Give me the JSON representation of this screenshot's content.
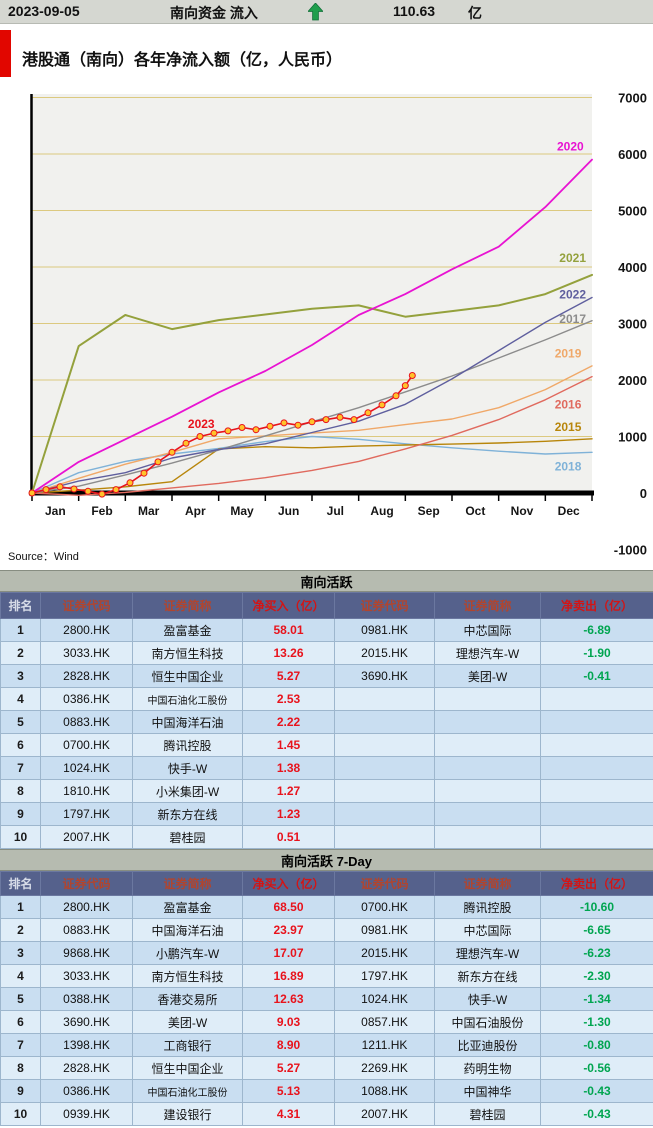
{
  "header": {
    "date": "2023-09-05",
    "label": "南向资金 流入",
    "value": "110.63",
    "unit": "亿",
    "arrow_icon": "up-arrow",
    "arrow_color": "#1f9e4c"
  },
  "chart": {
    "title": "港股通（南向）各年净流入额（亿，人民币）",
    "source": "Source：Wind",
    "accent_bar_color": "#e10600"
  },
  "chart_data": {
    "type": "line",
    "title": "港股通（南向）各年净流入额（亿，人民币）",
    "xlabel": "",
    "ylabel": "净流入额（亿，人民币）",
    "x_tick_labels": [
      "Jan",
      "Feb",
      "Mar",
      "Apr",
      "May",
      "Jun",
      "Jul",
      "Aug",
      "Sep",
      "Oct",
      "Nov",
      "Dec"
    ],
    "y_ticks": [
      7000,
      6000,
      5000,
      4000,
      3000,
      2000,
      1000,
      0,
      -1000
    ],
    "ylim": [
      -1000,
      7000
    ],
    "grid": "horizontal-yellow",
    "legend_position": "inline-line-end-labels",
    "series": [
      {
        "name": "2018",
        "color": "#7fb2d8",
        "width": 1.4,
        "label_at": [
          11.2,
          400
        ],
        "values": [
          0,
          360,
          560,
          690,
          790,
          910,
          1000,
          950,
          870,
          800,
          740,
          690,
          720
        ]
      },
      {
        "name": "2015",
        "color": "#b8860b",
        "width": 1.4,
        "label_at": [
          11.2,
          1100
        ],
        "values": [
          0,
          50,
          110,
          200,
          780,
          820,
          800,
          830,
          850,
          865,
          885,
          915,
          960
        ]
      },
      {
        "name": "2016",
        "color": "#e06a5e",
        "width": 1.4,
        "label_at": [
          11.2,
          1500
        ],
        "values": [
          0,
          -40,
          10,
          90,
          170,
          270,
          400,
          560,
          780,
          1020,
          1300,
          1650,
          2060
        ]
      },
      {
        "name": "2019",
        "color": "#f0a868",
        "width": 1.4,
        "label_at": [
          11.2,
          2400
        ],
        "values": [
          0,
          260,
          510,
          720,
          960,
          1010,
          1060,
          1110,
          1210,
          1310,
          1510,
          1830,
          2250
        ]
      },
      {
        "name": "2017",
        "color": "#8c8c8c",
        "width": 1.4,
        "label_at": [
          11.3,
          3010
        ],
        "values": [
          0,
          120,
          320,
          530,
          760,
          1010,
          1260,
          1510,
          1790,
          2070,
          2390,
          2710,
          3050
        ]
      },
      {
        "name": "2022",
        "color": "#5f5f9e",
        "width": 1.4,
        "label_at": [
          11.3,
          3440
        ],
        "values": [
          0,
          210,
          360,
          620,
          770,
          870,
          1070,
          1270,
          1570,
          2020,
          2520,
          3020,
          3460
        ]
      },
      {
        "name": "2021",
        "color": "#94a13c",
        "width": 2,
        "label_at": [
          11.3,
          4090
        ],
        "values": [
          0,
          2600,
          3150,
          2900,
          3060,
          3160,
          3260,
          3320,
          3120,
          3220,
          3320,
          3520,
          3860
        ]
      },
      {
        "name": "2020",
        "color": "#e813d2",
        "width": 1.8,
        "label_at": [
          11.25,
          6060
        ],
        "values": [
          0,
          550,
          950,
          1350,
          1780,
          2160,
          2620,
          3150,
          3520,
          3960,
          4360,
          5060,
          5900
        ]
      },
      {
        "name": "2023",
        "color": "#e8131c",
        "width": 1.6,
        "marker": "circle",
        "marker_fill": "#ffc32b",
        "label_at": [
          3.34,
          1150
        ],
        "x": [
          0,
          0.3,
          0.6,
          0.9,
          1.2,
          1.5,
          1.8,
          2.1,
          2.4,
          2.7,
          3.0,
          3.3,
          3.6,
          3.9,
          4.2,
          4.5,
          4.8,
          5.1,
          5.4,
          5.7,
          6.0,
          6.3,
          6.6,
          6.9,
          7.2,
          7.5,
          7.8,
          8.0,
          8.15
        ],
        "values": [
          0,
          60,
          110,
          70,
          30,
          -20,
          60,
          180,
          350,
          550,
          720,
          880,
          1000,
          1060,
          1100,
          1160,
          1120,
          1180,
          1240,
          1200,
          1260,
          1300,
          1340,
          1300,
          1420,
          1560,
          1720,
          1900,
          2080
        ]
      }
    ]
  },
  "tables": [
    {
      "title": "南向活跃",
      "columns": [
        "排名",
        "证券代码",
        "证券简称",
        "净买入（亿）",
        "证券代码",
        "证券简称",
        "净卖出（亿）"
      ],
      "rows": [
        [
          "1",
          "2800.HK",
          "盈富基金",
          "58.01",
          "0981.HK",
          "中芯国际",
          "-6.89"
        ],
        [
          "2",
          "3033.HK",
          "南方恒生科技",
          "13.26",
          "2015.HK",
          "理想汽车-W",
          "-1.90"
        ],
        [
          "3",
          "2828.HK",
          "恒生中国企业",
          "5.27",
          "3690.HK",
          "美团-W",
          "-0.41"
        ],
        [
          "4",
          "0386.HK",
          "中国石油化工股份",
          "2.53",
          "",
          "",
          ""
        ],
        [
          "5",
          "0883.HK",
          "中国海洋石油",
          "2.22",
          "",
          "",
          ""
        ],
        [
          "6",
          "0700.HK",
          "腾讯控股",
          "1.45",
          "",
          "",
          ""
        ],
        [
          "7",
          "1024.HK",
          "快手-W",
          "1.38",
          "",
          "",
          ""
        ],
        [
          "8",
          "1810.HK",
          "小米集团-W",
          "1.27",
          "",
          "",
          ""
        ],
        [
          "9",
          "1797.HK",
          "新东方在线",
          "1.23",
          "",
          "",
          ""
        ],
        [
          "10",
          "2007.HK",
          "碧桂园",
          "0.51",
          "",
          "",
          ""
        ]
      ]
    },
    {
      "title": "南向活跃 7-Day",
      "columns": [
        "排名",
        "证券代码",
        "证券简称",
        "净买入（亿）",
        "证券代码",
        "证券简称",
        "净卖出（亿）"
      ],
      "rows": [
        [
          "1",
          "2800.HK",
          "盈富基金",
          "68.50",
          "0700.HK",
          "腾讯控股",
          "-10.60"
        ],
        [
          "2",
          "0883.HK",
          "中国海洋石油",
          "23.97",
          "0981.HK",
          "中芯国际",
          "-6.65"
        ],
        [
          "3",
          "9868.HK",
          "小鹏汽车-W",
          "17.07",
          "2015.HK",
          "理想汽车-W",
          "-6.23"
        ],
        [
          "4",
          "3033.HK",
          "南方恒生科技",
          "16.89",
          "1797.HK",
          "新东方在线",
          "-2.30"
        ],
        [
          "5",
          "0388.HK",
          "香港交易所",
          "12.63",
          "1024.HK",
          "快手-W",
          "-1.34"
        ],
        [
          "6",
          "3690.HK",
          "美团-W",
          "9.03",
          "0857.HK",
          "中国石油股份",
          "-1.30"
        ],
        [
          "7",
          "1398.HK",
          "工商银行",
          "8.90",
          "1211.HK",
          "比亚迪股份",
          "-0.80"
        ],
        [
          "8",
          "2828.HK",
          "恒生中国企业",
          "5.27",
          "2269.HK",
          "药明生物",
          "-0.56"
        ],
        [
          "9",
          "0386.HK",
          "中国石油化工股份",
          "5.13",
          "1088.HK",
          "中国神华",
          "-0.43"
        ],
        [
          "10",
          "0939.HK",
          "建设银行",
          "4.31",
          "2007.HK",
          "碧桂园",
          "-0.43"
        ]
      ]
    }
  ],
  "colors": {
    "topbar_bg": "#d5d7d1",
    "accent_red_bar": "#e10600",
    "buy_value": "#e8131c",
    "sell_value": "#00a550",
    "table_header_bg": "#55618c",
    "table_title_bg": "#b6bbb0",
    "row_odd_bg": "#c9def1",
    "row_even_bg": "#dfedf8",
    "grid_line": "#dcc97f",
    "arrow_green": "#1f9e4c"
  }
}
